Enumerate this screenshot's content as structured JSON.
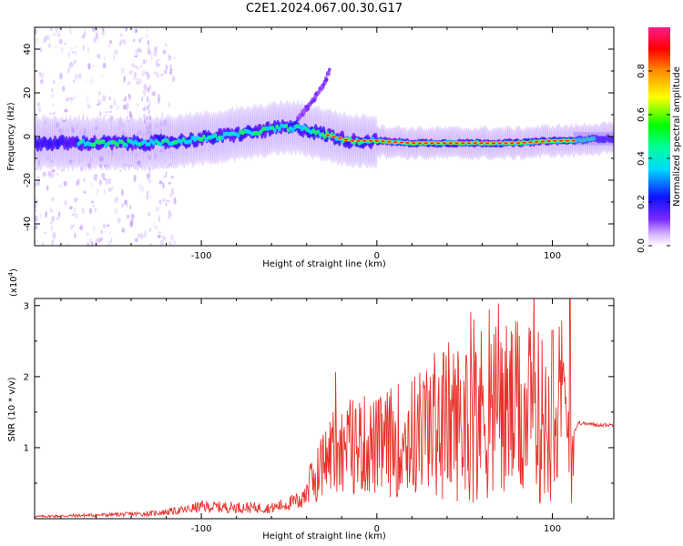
{
  "title": "C2E1.2024.067.00.30.G17",
  "chart_data": [
    {
      "type": "heatmap",
      "xlabel": "Height of straight line (km)",
      "ylabel": "Frequency (Hz)",
      "xlim": [
        -195,
        135
      ],
      "ylim": [
        -50,
        50
      ],
      "xticks": [
        "-100",
        "0",
        "100"
      ],
      "xtick_values": [
        -100,
        0,
        100
      ],
      "yticks": [
        "-40",
        "-20",
        "0",
        "20",
        "40"
      ],
      "ytick_values": [
        -40,
        -20,
        0,
        20,
        40
      ],
      "colorbar": {
        "label": "Normalized spectral amplitude",
        "range": [
          0,
          1
        ],
        "ticks": [
          "0.0",
          "0.2",
          "0.4",
          "0.6",
          "0.8"
        ],
        "tick_values": [
          0.0,
          0.2,
          0.4,
          0.6,
          0.8
        ]
      },
      "ridge": {
        "x": [
          -195,
          -170,
          -150,
          -130,
          -110,
          -90,
          -70,
          -55,
          -45,
          -35,
          -25,
          -15,
          0,
          20,
          40,
          60,
          80,
          100,
          110,
          125,
          135
        ],
        "y": [
          -3,
          -3,
          -3,
          -3,
          -2,
          0,
          2,
          4,
          4,
          2,
          0,
          -2,
          -2,
          -3,
          -3,
          -3,
          -3,
          -2,
          -2,
          -1,
          -1
        ]
      },
      "secondary_branch": {
        "x": [
          -45,
          -40,
          -35,
          -30,
          -27
        ],
        "y": [
          8,
          13,
          18,
          24,
          30
        ]
      }
    },
    {
      "type": "line",
      "xlabel": "Height of straight line (km)",
      "ylabel": "SNR (10 * v/v)",
      "yscale_label": "(x10",
      "yscale_exp": "4",
      "yscale_close": ")",
      "xlim": [
        -195,
        135
      ],
      "ylim": [
        0,
        3.1
      ],
      "xticks": [
        "-100",
        "0",
        "100"
      ],
      "xtick_values": [
        -100,
        0,
        100
      ],
      "yticks": [
        "1",
        "2",
        "3"
      ],
      "ytick_values": [
        1,
        2,
        3
      ],
      "series": [
        {
          "color": "#e8322c",
          "x": [
            -195,
            -160,
            -130,
            -110,
            -100,
            -80,
            -60,
            -45,
            -40,
            -35,
            -30,
            -25,
            -20,
            -10,
            0,
            10,
            20,
            30,
            40,
            50,
            60,
            70,
            80,
            90,
            100,
            106,
            110,
            115,
            125,
            135
          ],
          "y": [
            0.03,
            0.05,
            0.07,
            0.12,
            0.17,
            0.16,
            0.15,
            0.25,
            0.4,
            0.6,
            0.8,
            0.95,
            1.0,
            1.05,
            1.0,
            1.1,
            1.15,
            1.3,
            1.4,
            1.35,
            1.5,
            1.55,
            1.5,
            1.45,
            1.4,
            1.6,
            1.1,
            1.35,
            1.32,
            1.32
          ]
        }
      ]
    }
  ]
}
